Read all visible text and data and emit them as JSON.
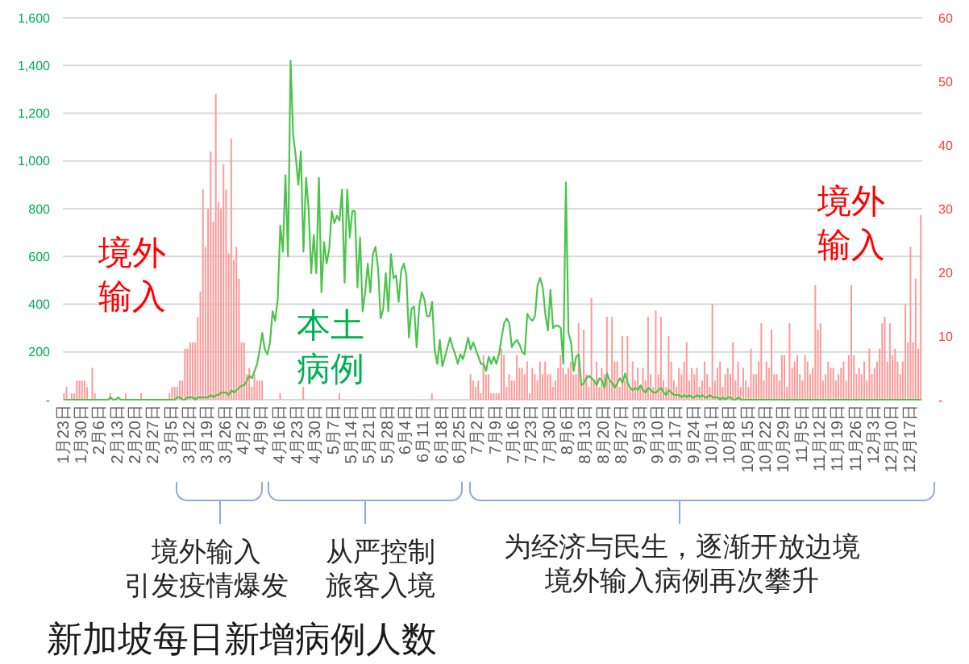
{
  "chart_data": {
    "type": "bar",
    "title": "新加坡每日新增病例人数",
    "categories": [
      "1月23日",
      null,
      null,
      null,
      null,
      null,
      null,
      "1月30日",
      null,
      null,
      null,
      null,
      null,
      null,
      "2月6日",
      null,
      null,
      null,
      null,
      null,
      null,
      "2月13日",
      null,
      null,
      null,
      null,
      null,
      null,
      "2月20日",
      null,
      null,
      null,
      null,
      null,
      null,
      "2月27日",
      null,
      null,
      null,
      null,
      null,
      null,
      "3月5日",
      null,
      null,
      null,
      null,
      null,
      null,
      "3月12日",
      null,
      null,
      null,
      null,
      null,
      null,
      "3月19日",
      null,
      null,
      null,
      null,
      null,
      null,
      "3月26日",
      null,
      null,
      null,
      null,
      null,
      null,
      "4月2日",
      null,
      null,
      null,
      null,
      null,
      null,
      "4月9日",
      null,
      null,
      null,
      null,
      null,
      null,
      "4月16日",
      null,
      null,
      null,
      null,
      null,
      null,
      "4月23日",
      null,
      null,
      null,
      null,
      null,
      null,
      "4月30日",
      null,
      null,
      null,
      null,
      null,
      null,
      "5月7日",
      null,
      null,
      null,
      null,
      null,
      null,
      "5月14日",
      null,
      null,
      null,
      null,
      null,
      null,
      "5月21日",
      null,
      null,
      null,
      null,
      null,
      null,
      "5月28日",
      null,
      null,
      null,
      null,
      null,
      null,
      "6月4日",
      null,
      null,
      null,
      null,
      null,
      null,
      "6月11日",
      null,
      null,
      null,
      null,
      null,
      null,
      "6月18日",
      null,
      null,
      null,
      null,
      null,
      null,
      "6月25日",
      null,
      null,
      null,
      null,
      null,
      null,
      "7月2日",
      null,
      null,
      null,
      null,
      null,
      null,
      "7月9日",
      null,
      null,
      null,
      null,
      null,
      null,
      "7月16日",
      null,
      null,
      null,
      null,
      null,
      null,
      "7月23日",
      null,
      null,
      null,
      null,
      null,
      null,
      "7月30日",
      null,
      null,
      null,
      null,
      null,
      null,
      "8月6日",
      null,
      null,
      null,
      null,
      null,
      null,
      "8月13日",
      null,
      null,
      null,
      null,
      null,
      null,
      "8月20日",
      null,
      null,
      null,
      null,
      null,
      null,
      "8月27日",
      null,
      null,
      null,
      null,
      null,
      null,
      "9月3日",
      null,
      null,
      null,
      null,
      null,
      null,
      "9月10日",
      null,
      null,
      null,
      null,
      null,
      null,
      "9月17日",
      null,
      null,
      null,
      null,
      null,
      null,
      "9月24日",
      null,
      null,
      null,
      null,
      null,
      null,
      "10月1日",
      null,
      null,
      null,
      null,
      null,
      null,
      "10月8日",
      null,
      null,
      null,
      null,
      null,
      null,
      "10月15日",
      null,
      null,
      null,
      null,
      null,
      null,
      "10月22日",
      null,
      null,
      null,
      null,
      null,
      null,
      "10月29日",
      null,
      null,
      null,
      null,
      null,
      null,
      "11月5日",
      null,
      null,
      null,
      null,
      null,
      null,
      "11月12日",
      null,
      null,
      null,
      null,
      null,
      null,
      "11月19日",
      null,
      null,
      null,
      null,
      null,
      null,
      "11月26日",
      null,
      null,
      null,
      null,
      null,
      null,
      "12月3日",
      null,
      null,
      null,
      null,
      null,
      null,
      "12月10日",
      null,
      null,
      null,
      null,
      null,
      null,
      "12月17日",
      null,
      null,
      null,
      null
    ],
    "series": [
      {
        "name": "境外输入",
        "axis": "y2",
        "color": "#ff9999",
        "values": [
          1,
          2,
          0,
          1,
          1,
          3,
          3,
          3,
          3,
          2,
          0,
          5,
          1,
          0,
          0,
          0,
          0,
          0,
          1,
          0,
          0,
          0,
          0,
          0,
          1,
          0,
          0,
          0,
          0,
          0,
          1,
          0,
          0,
          0,
          0,
          0,
          0,
          0,
          0,
          0,
          0,
          1,
          2,
          2,
          2,
          3,
          3,
          8,
          8,
          9,
          9,
          9,
          13,
          17,
          33,
          24,
          30,
          39,
          28,
          48,
          31,
          30,
          37,
          33,
          23,
          41,
          22,
          24,
          19,
          9,
          9,
          4,
          5,
          2,
          4,
          3,
          3,
          3,
          0,
          0,
          0,
          0,
          0,
          0,
          1,
          0,
          0,
          0,
          0,
          0,
          0,
          0,
          0,
          2,
          0,
          0,
          0,
          0,
          0,
          0,
          0,
          0,
          0,
          0,
          0,
          0,
          0,
          1,
          0,
          0,
          0,
          0,
          0,
          0,
          0,
          0,
          0,
          0,
          0,
          0,
          0,
          0,
          0,
          0,
          0,
          0,
          0,
          0,
          0,
          0,
          0,
          0,
          0,
          0,
          0,
          0,
          0,
          0,
          0,
          0,
          0,
          0,
          0,
          1,
          0,
          0,
          0,
          0,
          0,
          0,
          0,
          0,
          0,
          0,
          0,
          0,
          0,
          0,
          4,
          3,
          2,
          3,
          1,
          7,
          4,
          4,
          1,
          1,
          1,
          1,
          8,
          7,
          2,
          4,
          3,
          3,
          7,
          5,
          5,
          4,
          6,
          1,
          5,
          4,
          3,
          6,
          4,
          6,
          4,
          4,
          2,
          3,
          5,
          7,
          5,
          4,
          5,
          6,
          4,
          4,
          12,
          3,
          11,
          4,
          2,
          16,
          3,
          6,
          2,
          5,
          4,
          13,
          3,
          13,
          6,
          6,
          2,
          10,
          3,
          10,
          2,
          6,
          3,
          5,
          2,
          5,
          3,
          13,
          4,
          2,
          14,
          4,
          13,
          3,
          2,
          10,
          6,
          3,
          2,
          5,
          4,
          6,
          9,
          3,
          5,
          4,
          5,
          2,
          3,
          6,
          4,
          2,
          15,
          3,
          5,
          6,
          2,
          4,
          5,
          4,
          9,
          3,
          6,
          2,
          5,
          3,
          2,
          8,
          4,
          4,
          6,
          12,
          3,
          6,
          5,
          11,
          4,
          4,
          3,
          7,
          7,
          2,
          12,
          5,
          6,
          7,
          4,
          3,
          7,
          6,
          4,
          5,
          18,
          11,
          12,
          3,
          4,
          6,
          5,
          5,
          3,
          4,
          5,
          6,
          3,
          7,
          18,
          7,
          4,
          5,
          4,
          6,
          3,
          8,
          4,
          5,
          6,
          8,
          12,
          13,
          6,
          12,
          7,
          8,
          6,
          4,
          6,
          15,
          9,
          24,
          9,
          19,
          8,
          29
        ]
      },
      {
        "name": "本土病例",
        "type": "line",
        "color": "#4cc44c",
        "values": [
          0,
          0,
          0,
          0,
          0,
          0,
          0,
          0,
          0,
          0,
          0,
          0,
          0,
          0,
          0,
          0,
          0,
          0,
          10,
          0,
          0,
          10,
          0,
          0,
          0,
          0,
          0,
          0,
          0,
          0,
          0,
          0,
          0,
          0,
          0,
          0,
          0,
          0,
          0,
          0,
          0,
          0,
          0,
          0,
          10,
          10,
          0,
          0,
          10,
          10,
          10,
          0,
          10,
          10,
          10,
          10,
          10,
          20,
          10,
          20,
          20,
          30,
          30,
          30,
          20,
          40,
          30,
          40,
          50,
          60,
          60,
          80,
          100,
          90,
          120,
          150,
          210,
          280,
          210,
          190,
          240,
          370,
          330,
          420,
          730,
          620,
          940,
          600,
          1420,
          1110,
          1020,
          900,
          1040,
          620,
          930,
          800,
          530,
          690,
          530,
          930,
          450,
          660,
          570,
          630,
          790,
          740,
          770,
          750,
          880,
          490,
          880,
          680,
          790,
          790,
          470,
          680,
          370,
          450,
          570,
          450,
          610,
          640,
          550,
          340,
          380,
          530,
          370,
          610,
          510,
          520,
          410,
          540,
          570,
          520,
          260,
          380,
          390,
          220,
          390,
          450,
          420,
          350,
          350,
          410,
          210,
          150,
          250,
          140,
          180,
          220,
          260,
          220,
          190,
          150,
          190,
          170,
          210,
          260,
          210,
          240,
          210,
          180,
          150,
          150,
          120,
          180,
          150,
          180,
          150,
          190,
          260,
          320,
          340,
          320,
          220,
          240,
          250,
          230,
          200,
          190,
          360,
          340,
          330,
          350,
          480,
          510,
          470,
          360,
          290,
          460,
          300,
          310,
          310,
          300,
          150,
          910,
          280,
          240,
          120,
          180,
          190,
          60,
          70,
          90,
          100,
          90,
          80,
          60,
          90,
          80,
          50,
          110,
          80,
          70,
          50,
          70,
          90,
          70,
          110,
          70,
          50,
          40,
          50,
          40,
          60,
          40,
          30,
          50,
          40,
          30,
          30,
          40,
          50,
          30,
          20,
          40,
          30,
          20,
          20,
          20,
          10,
          20,
          10,
          20,
          10,
          10,
          20,
          10,
          20,
          10,
          10,
          20,
          10,
          10,
          10,
          0,
          10,
          0,
          10,
          10,
          0,
          0,
          10,
          0,
          0,
          0,
          0,
          0,
          0,
          0,
          0,
          0,
          0,
          0,
          0,
          0,
          0,
          0,
          0,
          0,
          0,
          0,
          0,
          0,
          0,
          0,
          0,
          0,
          0,
          0,
          0,
          0,
          0,
          0,
          0,
          0,
          0,
          0,
          0,
          0,
          0,
          0,
          0,
          0,
          0,
          0,
          0,
          0,
          0,
          0,
          0,
          0,
          0,
          0,
          0,
          0,
          0,
          0,
          0,
          0,
          0,
          0,
          0,
          0,
          0,
          0,
          0,
          0,
          0,
          0,
          0,
          0,
          0,
          0
        ]
      }
    ],
    "ylim": [
      0,
      1600
    ],
    "yticks": [
      {
        "value": 0,
        "label": "-"
      },
      200,
      400,
      600,
      800,
      {
        "value": 1000,
        "label": "1,000"
      },
      {
        "value": 1200,
        "label": "1,200"
      },
      {
        "value": 1400,
        "label": "1,400"
      },
      {
        "value": 1600,
        "label": "1,600"
      }
    ],
    "y2lim": [
      0,
      60
    ],
    "y2ticks": [
      {
        "value": 0,
        "label": "-"
      },
      10,
      20,
      30,
      40,
      50,
      60
    ],
    "grid": "y",
    "annotations": [
      "境外输入引发疫情爆发",
      "从严控制旅客入境",
      "为经济与民生，逐渐开放边境境外输入病例再次攀升"
    ]
  }
}
